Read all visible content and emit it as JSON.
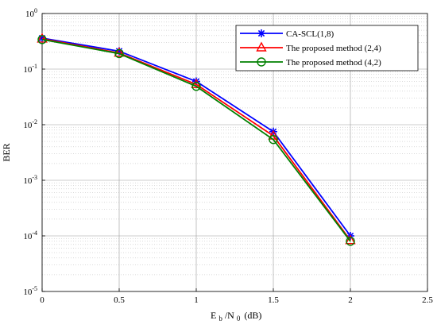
{
  "chart_data": {
    "type": "line",
    "title": "",
    "ylabel": "BER",
    "xlabel": {
      "main": "E",
      "sub_b": "b",
      "slash_n": "/N",
      "sub_0": "0",
      "unit": "(dB)"
    },
    "xlim": [
      0,
      2.5
    ],
    "ylim_log10": [
      -5,
      0
    ],
    "y_scale": "log",
    "grid": true,
    "minor_grid": true,
    "legend_position": "top-right",
    "x_ticks": [
      "0",
      "0.5",
      "1",
      "1.5",
      "2",
      "2.5"
    ],
    "y_ticks": [
      {
        "base": "10",
        "exp": "0"
      },
      {
        "base": "10",
        "exp": "-1"
      },
      {
        "base": "10",
        "exp": "-2"
      },
      {
        "base": "10",
        "exp": "-3"
      },
      {
        "base": "10",
        "exp": "-4"
      },
      {
        "base": "10",
        "exp": "-5"
      }
    ],
    "x": [
      0,
      0.5,
      1,
      1.5,
      2
    ],
    "series": [
      {
        "name": "CA-SCL(1,8)",
        "color": "#0000ff",
        "marker": "star",
        "values": [
          0.36,
          0.21,
          0.06,
          0.0075,
          0.0001
        ]
      },
      {
        "name": "The proposed method (2,4)",
        "color": "#ff0000",
        "marker": "triangle",
        "values": [
          0.35,
          0.195,
          0.053,
          0.0063,
          8.3e-05
        ]
      },
      {
        "name": "The proposed method (4,2)",
        "color": "#008000",
        "marker": "circle",
        "values": [
          0.34,
          0.19,
          0.049,
          0.0054,
          8e-05
        ]
      }
    ]
  }
}
